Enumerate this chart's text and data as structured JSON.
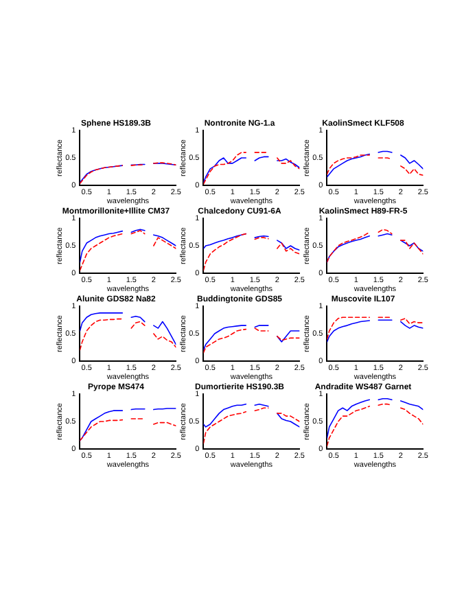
{
  "chart_data": [
    {
      "type": "line",
      "title": "Sphene HS189.3B",
      "xlabel": "wavelengths",
      "ylabel": "reflectance",
      "xlim": [
        0.35,
        2.5
      ],
      "ylim": [
        0,
        1
      ],
      "xticks": [
        0.5,
        1,
        1.5,
        2,
        2.5
      ],
      "yticks": [
        0,
        0.5,
        1
      ],
      "series": [
        {
          "color": "#0000ff",
          "line_style": "solid",
          "x": [
            0.35,
            0.4,
            0.5,
            0.6,
            0.7,
            0.8,
            0.9,
            1.0,
            1.1,
            1.2,
            1.3
          ],
          "values": [
            0.05,
            0.1,
            0.2,
            0.25,
            0.28,
            0.3,
            0.32,
            0.33,
            0.34,
            0.35,
            0.36
          ]
        },
        {
          "color": "#0000fe",
          "line_style": "solid",
          "x": [
            1.5,
            1.6,
            1.7,
            1.8
          ],
          "values": [
            0.37,
            0.37,
            0.38,
            0.38
          ]
        },
        {
          "color": "#0000fd",
          "line_style": "solid",
          "x": [
            2.0,
            2.1,
            2.2,
            2.3,
            2.4,
            2.5
          ],
          "values": [
            0.4,
            0.4,
            0.4,
            0.39,
            0.38,
            0.37
          ]
        },
        {
          "color": "#ff0000",
          "line_style": "dashed",
          "x": [
            0.35,
            0.4,
            0.5,
            0.6,
            0.7,
            0.8,
            0.9,
            1.0,
            1.1,
            1.2,
            1.3
          ],
          "values": [
            0.03,
            0.08,
            0.18,
            0.24,
            0.28,
            0.3,
            0.32,
            0.33,
            0.34,
            0.35,
            0.36
          ]
        },
        {
          "color": "#fe0000",
          "line_style": "dashed",
          "x": [
            1.5,
            1.6,
            1.7,
            1.8
          ],
          "values": [
            0.36,
            0.37,
            0.37,
            0.38
          ]
        },
        {
          "color": "#fd0000",
          "line_style": "dashed",
          "x": [
            2.0,
            2.1,
            2.2,
            2.3,
            2.4,
            2.5
          ],
          "values": [
            0.4,
            0.41,
            0.41,
            0.4,
            0.39,
            0.37
          ]
        }
      ]
    },
    {
      "type": "line",
      "title": "Nontronite NG-1.a",
      "xlabel": "wavelengths",
      "ylabel": "reflectance",
      "xlim": [
        0.35,
        2.5
      ],
      "ylim": [
        0,
        1
      ],
      "xticks": [
        0.5,
        1,
        1.5,
        2,
        2.5
      ],
      "yticks": [
        0,
        0.5,
        1
      ],
      "series": [
        {
          "color": "#0000ff",
          "line_style": "solid",
          "x": [
            0.35,
            0.4,
            0.5,
            0.6,
            0.7,
            0.8,
            0.9,
            1.0,
            1.1,
            1.2,
            1.3
          ],
          "values": [
            0.05,
            0.15,
            0.3,
            0.35,
            0.45,
            0.5,
            0.4,
            0.4,
            0.45,
            0.5,
            0.5
          ]
        },
        {
          "color": "#0000fe",
          "line_style": "solid",
          "x": [
            1.5,
            1.6,
            1.7,
            1.8
          ],
          "values": [
            0.45,
            0.5,
            0.52,
            0.52
          ]
        },
        {
          "color": "#0000fd",
          "line_style": "solid",
          "x": [
            2.0,
            2.1,
            2.2,
            2.3,
            2.4,
            2.5
          ],
          "values": [
            0.45,
            0.45,
            0.48,
            0.42,
            0.38,
            0.32
          ]
        },
        {
          "color": "#ff0000",
          "line_style": "dashed",
          "x": [
            0.35,
            0.4,
            0.5,
            0.6,
            0.7,
            0.8,
            0.9,
            1.0,
            1.1,
            1.2,
            1.3
          ],
          "values": [
            0.02,
            0.1,
            0.25,
            0.35,
            0.38,
            0.38,
            0.4,
            0.45,
            0.55,
            0.6,
            0.6
          ]
        },
        {
          "color": "#fe0000",
          "line_style": "dashed",
          "x": [
            1.5,
            1.6,
            1.7,
            1.8
          ],
          "values": [
            0.6,
            0.6,
            0.6,
            0.6
          ]
        },
        {
          "color": "#fd0000",
          "line_style": "dashed",
          "x": [
            2.0,
            2.1,
            2.2,
            2.3,
            2.4,
            2.5
          ],
          "values": [
            0.5,
            0.4,
            0.4,
            0.45,
            0.35,
            0.3
          ]
        }
      ]
    },
    {
      "type": "line",
      "title": "KaolinSmect KLF508",
      "xlabel": "wavelengths",
      "ylabel": "reflectance",
      "xlim": [
        0.35,
        2.5
      ],
      "ylim": [
        0,
        1
      ],
      "xticks": [
        0.5,
        1,
        1.5,
        2,
        2.5
      ],
      "yticks": [
        0,
        0.5,
        1
      ],
      "series": [
        {
          "color": "#0000ff",
          "line_style": "solid",
          "x": [
            0.35,
            0.4,
            0.5,
            0.6,
            0.7,
            0.8,
            0.9,
            1.0,
            1.1,
            1.2,
            1.3
          ],
          "values": [
            0.15,
            0.2,
            0.3,
            0.35,
            0.4,
            0.45,
            0.48,
            0.5,
            0.52,
            0.55,
            0.57
          ]
        },
        {
          "color": "#0000fe",
          "line_style": "solid",
          "x": [
            1.5,
            1.6,
            1.7,
            1.8
          ],
          "values": [
            0.6,
            0.62,
            0.62,
            0.6
          ]
        },
        {
          "color": "#0000fd",
          "line_style": "solid",
          "x": [
            2.0,
            2.1,
            2.2,
            2.3,
            2.4,
            2.5
          ],
          "values": [
            0.55,
            0.5,
            0.4,
            0.45,
            0.38,
            0.3
          ]
        },
        {
          "color": "#ff0000",
          "line_style": "dashed",
          "x": [
            0.35,
            0.4,
            0.5,
            0.6,
            0.7,
            0.8,
            0.9,
            1.0,
            1.1,
            1.2,
            1.3
          ],
          "values": [
            0.2,
            0.3,
            0.4,
            0.45,
            0.48,
            0.5,
            0.5,
            0.52,
            0.55,
            0.55,
            0.55
          ]
        },
        {
          "color": "#fe0000",
          "line_style": "dashed",
          "x": [
            1.5,
            1.6,
            1.7,
            1.8
          ],
          "values": [
            0.5,
            0.5,
            0.5,
            0.48
          ]
        },
        {
          "color": "#fd0000",
          "line_style": "dashed",
          "x": [
            2.0,
            2.1,
            2.2,
            2.3,
            2.4,
            2.5
          ],
          "values": [
            0.35,
            0.3,
            0.2,
            0.3,
            0.2,
            0.18
          ]
        }
      ]
    },
    {
      "type": "line",
      "title": "Montmorillonite+Illite CM37",
      "xlabel": "wavelengths",
      "ylabel": "reflectance",
      "xlim": [
        0.35,
        2.5
      ],
      "ylim": [
        0,
        1
      ],
      "xticks": [
        0.5,
        1,
        1.5,
        2,
        2.5
      ],
      "yticks": [
        0,
        0.5,
        1
      ],
      "series": [
        {
          "color": "#0000ff",
          "line_style": "solid",
          "x": [
            0.35,
            0.4,
            0.5,
            0.6,
            0.7,
            0.8,
            0.9,
            1.0,
            1.1,
            1.2,
            1.3
          ],
          "values": [
            0.2,
            0.4,
            0.55,
            0.6,
            0.65,
            0.68,
            0.7,
            0.72,
            0.73,
            0.75,
            0.77
          ]
        },
        {
          "color": "#0000fe",
          "line_style": "solid",
          "x": [
            1.5,
            1.6,
            1.7,
            1.8
          ],
          "values": [
            0.75,
            0.78,
            0.8,
            0.78
          ]
        },
        {
          "color": "#0000fd",
          "line_style": "solid",
          "x": [
            2.0,
            2.1,
            2.2,
            2.3,
            2.4,
            2.5
          ],
          "values": [
            0.7,
            0.68,
            0.65,
            0.6,
            0.55,
            0.5
          ]
        },
        {
          "color": "#ff0000",
          "line_style": "dashed",
          "x": [
            0.35,
            0.4,
            0.5,
            0.6,
            0.7,
            0.8,
            0.9,
            1.0,
            1.1,
            1.2,
            1.3
          ],
          "values": [
            0.05,
            0.15,
            0.35,
            0.45,
            0.5,
            0.55,
            0.6,
            0.65,
            0.68,
            0.7,
            0.72
          ]
        },
        {
          "color": "#fe0000",
          "line_style": "dashed",
          "x": [
            1.5,
            1.6,
            1.7,
            1.8
          ],
          "values": [
            0.72,
            0.75,
            0.78,
            0.72
          ]
        },
        {
          "color": "#fd0000",
          "line_style": "dashed",
          "x": [
            2.0,
            2.1,
            2.2,
            2.3,
            2.4,
            2.5
          ],
          "values": [
            0.5,
            0.65,
            0.6,
            0.55,
            0.5,
            0.45
          ]
        }
      ]
    },
    {
      "type": "line",
      "title": "Chalcedony CU91-6A",
      "xlabel": "wavelengths",
      "ylabel": "reflectance",
      "xlim": [
        0.35,
        2.5
      ],
      "ylim": [
        0,
        1
      ],
      "xticks": [
        0.5,
        1,
        1.5,
        2,
        2.5
      ],
      "yticks": [
        0,
        0.5,
        1
      ],
      "series": [
        {
          "color": "#0000ff",
          "line_style": "solid",
          "x": [
            0.35,
            0.4,
            0.5,
            0.6,
            0.7,
            0.8,
            0.9,
            1.0,
            1.1,
            1.2,
            1.3
          ],
          "values": [
            0.45,
            0.5,
            0.52,
            0.55,
            0.58,
            0.6,
            0.63,
            0.65,
            0.68,
            0.7,
            0.72
          ]
        },
        {
          "color": "#0000fe",
          "line_style": "solid",
          "x": [
            1.5,
            1.6,
            1.7,
            1.8
          ],
          "values": [
            0.65,
            0.67,
            0.68,
            0.67
          ]
        },
        {
          "color": "#0000fd",
          "line_style": "solid",
          "x": [
            2.0,
            2.1,
            2.2,
            2.3,
            2.4,
            2.5
          ],
          "values": [
            0.6,
            0.55,
            0.45,
            0.5,
            0.45,
            0.42
          ]
        },
        {
          "color": "#ff0000",
          "line_style": "dashed",
          "x": [
            0.35,
            0.4,
            0.5,
            0.6,
            0.7,
            0.8,
            0.9,
            1.0,
            1.1,
            1.2,
            1.3
          ],
          "values": [
            0.05,
            0.2,
            0.35,
            0.42,
            0.48,
            0.52,
            0.58,
            0.62,
            0.66,
            0.7,
            0.72
          ]
        },
        {
          "color": "#fe0000",
          "line_style": "dashed",
          "x": [
            1.5,
            1.6,
            1.7,
            1.8
          ],
          "values": [
            0.62,
            0.65,
            0.65,
            0.63
          ]
        },
        {
          "color": "#fd0000",
          "line_style": "dashed",
          "x": [
            2.0,
            2.1,
            2.2,
            2.3,
            2.4,
            2.5
          ],
          "values": [
            0.45,
            0.55,
            0.4,
            0.45,
            0.38,
            0.35
          ]
        }
      ]
    },
    {
      "type": "line",
      "title": "KaolinSmect H89-FR-5",
      "xlabel": "wavelengths",
      "ylabel": "reflectance",
      "xlim": [
        0.35,
        2.5
      ],
      "ylim": [
        0,
        1
      ],
      "xticks": [
        0.5,
        1,
        1.5,
        2,
        2.5
      ],
      "yticks": [
        0,
        0.5,
        1
      ],
      "series": [
        {
          "color": "#0000ff",
          "line_style": "solid",
          "x": [
            0.35,
            0.4,
            0.5,
            0.6,
            0.7,
            0.8,
            0.9,
            1.0,
            1.1,
            1.2,
            1.3
          ],
          "values": [
            0.2,
            0.3,
            0.4,
            0.48,
            0.52,
            0.55,
            0.58,
            0.6,
            0.62,
            0.65,
            0.68
          ]
        },
        {
          "color": "#0000fe",
          "line_style": "solid",
          "x": [
            1.5,
            1.6,
            1.7,
            1.8
          ],
          "values": [
            0.68,
            0.7,
            0.72,
            0.7
          ]
        },
        {
          "color": "#0000fd",
          "line_style": "solid",
          "x": [
            2.0,
            2.1,
            2.2,
            2.3,
            2.4,
            2.5
          ],
          "values": [
            0.6,
            0.55,
            0.5,
            0.55,
            0.45,
            0.4
          ]
        },
        {
          "color": "#ff0000",
          "line_style": "dashed",
          "x": [
            0.35,
            0.4,
            0.5,
            0.6,
            0.7,
            0.8,
            0.9,
            1.0,
            1.1,
            1.2,
            1.3
          ],
          "values": [
            0.2,
            0.3,
            0.4,
            0.5,
            0.55,
            0.58,
            0.6,
            0.63,
            0.66,
            0.7,
            0.75
          ]
        },
        {
          "color": "#fe0000",
          "line_style": "dashed",
          "x": [
            1.5,
            1.6,
            1.7,
            1.8
          ],
          "values": [
            0.75,
            0.8,
            0.78,
            0.72
          ]
        },
        {
          "color": "#fd0000",
          "line_style": "dashed",
          "x": [
            2.0,
            2.1,
            2.2,
            2.3,
            2.4,
            2.5
          ],
          "values": [
            0.6,
            0.6,
            0.45,
            0.55,
            0.45,
            0.35
          ]
        }
      ]
    },
    {
      "type": "line",
      "title": "Alunite GDS82 Na82",
      "xlabel": "wavelengths",
      "ylabel": "reflectance",
      "xlim": [
        0.35,
        2.5
      ],
      "ylim": [
        0,
        1
      ],
      "xticks": [
        0.5,
        1,
        1.5,
        2,
        2.5
      ],
      "yticks": [
        0,
        0.5,
        1
      ],
      "series": [
        {
          "color": "#0000ff",
          "line_style": "solid",
          "x": [
            0.35,
            0.4,
            0.5,
            0.6,
            0.7,
            0.8,
            0.9,
            1.0,
            1.1,
            1.2,
            1.3
          ],
          "values": [
            0.55,
            0.7,
            0.8,
            0.85,
            0.87,
            0.88,
            0.88,
            0.88,
            0.88,
            0.88,
            0.88
          ]
        },
        {
          "color": "#0000fe",
          "line_style": "solid",
          "x": [
            1.5,
            1.6,
            1.7,
            1.8
          ],
          "values": [
            0.8,
            0.82,
            0.8,
            0.72
          ]
        },
        {
          "color": "#0000fd",
          "line_style": "solid",
          "x": [
            2.0,
            2.1,
            2.2,
            2.3,
            2.4,
            2.5
          ],
          "values": [
            0.65,
            0.6,
            0.72,
            0.6,
            0.45,
            0.3
          ]
        },
        {
          "color": "#ff0000",
          "line_style": "dashed",
          "x": [
            0.35,
            0.4,
            0.5,
            0.6,
            0.7,
            0.8,
            0.9,
            1.0,
            1.1,
            1.2,
            1.3
          ],
          "values": [
            0.2,
            0.35,
            0.55,
            0.65,
            0.72,
            0.75,
            0.75,
            0.76,
            0.76,
            0.77,
            0.77
          ]
        },
        {
          "color": "#fe0000",
          "line_style": "dashed",
          "x": [
            1.5,
            1.6,
            1.7,
            1.8
          ],
          "values": [
            0.6,
            0.7,
            0.72,
            0.65
          ]
        },
        {
          "color": "#fd0000",
          "line_style": "dashed",
          "x": [
            2.0,
            2.1,
            2.2,
            2.3,
            2.4,
            2.5
          ],
          "values": [
            0.5,
            0.4,
            0.45,
            0.38,
            0.35,
            0.25
          ]
        }
      ]
    },
    {
      "type": "line",
      "title": "Buddingtonite GDS85",
      "xlabel": "wavelengths",
      "ylabel": "reflectance",
      "xlim": [
        0.35,
        2.5
      ],
      "ylim": [
        0,
        1
      ],
      "xticks": [
        0.5,
        1,
        1.5,
        2,
        2.5
      ],
      "yticks": [
        0,
        0.5,
        1
      ],
      "series": [
        {
          "color": "#0000ff",
          "line_style": "solid",
          "x": [
            0.35,
            0.4,
            0.5,
            0.6,
            0.7,
            0.8,
            0.9,
            1.0,
            1.1,
            1.2,
            1.3
          ],
          "values": [
            0.2,
            0.3,
            0.4,
            0.5,
            0.55,
            0.6,
            0.62,
            0.63,
            0.64,
            0.65,
            0.65
          ]
        },
        {
          "color": "#0000fe",
          "line_style": "solid",
          "x": [
            1.5,
            1.6,
            1.7,
            1.8
          ],
          "values": [
            0.62,
            0.65,
            0.65,
            0.65
          ]
        },
        {
          "color": "#0000fd",
          "line_style": "solid",
          "x": [
            2.0,
            2.1,
            2.2,
            2.3,
            2.4,
            2.5
          ],
          "values": [
            0.45,
            0.35,
            0.45,
            0.55,
            0.55,
            0.55
          ]
        },
        {
          "color": "#ff0000",
          "line_style": "dashed",
          "x": [
            0.35,
            0.4,
            0.5,
            0.6,
            0.7,
            0.8,
            0.9,
            1.0,
            1.1,
            1.2,
            1.3
          ],
          "values": [
            0.15,
            0.25,
            0.3,
            0.35,
            0.4,
            0.42,
            0.45,
            0.5,
            0.55,
            0.57,
            0.58
          ]
        },
        {
          "color": "#fe0000",
          "line_style": "dashed",
          "x": [
            1.5,
            1.6,
            1.7,
            1.8
          ],
          "values": [
            0.6,
            0.55,
            0.55,
            0.55
          ]
        },
        {
          "color": "#fd0000",
          "line_style": "dashed",
          "x": [
            2.0,
            2.1,
            2.2,
            2.3,
            2.4,
            2.5
          ],
          "values": [
            0.45,
            0.38,
            0.4,
            0.42,
            0.42,
            0.42
          ]
        }
      ]
    },
    {
      "type": "line",
      "title": "Muscovite IL107",
      "xlabel": "wavelengths",
      "ylabel": "reflectance",
      "xlim": [
        0.35,
        2.5
      ],
      "ylim": [
        0,
        1
      ],
      "xticks": [
        0.5,
        1,
        1.5,
        2,
        2.5
      ],
      "yticks": [
        0,
        0.5,
        1
      ],
      "series": [
        {
          "color": "#0000ff",
          "line_style": "solid",
          "x": [
            0.35,
            0.4,
            0.5,
            0.6,
            0.7,
            0.8,
            0.9,
            1.0,
            1.1,
            1.2,
            1.3
          ],
          "values": [
            0.35,
            0.45,
            0.55,
            0.6,
            0.63,
            0.65,
            0.68,
            0.7,
            0.72,
            0.73,
            0.74
          ]
        },
        {
          "color": "#0000fe",
          "line_style": "solid",
          "x": [
            1.5,
            1.6,
            1.7,
            1.8
          ],
          "values": [
            0.75,
            0.75,
            0.75,
            0.75
          ]
        },
        {
          "color": "#0000fd",
          "line_style": "solid",
          "x": [
            2.0,
            2.1,
            2.2,
            2.3,
            2.4,
            2.5
          ],
          "values": [
            0.72,
            0.65,
            0.6,
            0.65,
            0.62,
            0.6
          ]
        },
        {
          "color": "#ff0000",
          "line_style": "dashed",
          "x": [
            0.35,
            0.4,
            0.5,
            0.6,
            0.7,
            0.8,
            0.9,
            1.0,
            1.1,
            1.2,
            1.3
          ],
          "values": [
            0.4,
            0.55,
            0.7,
            0.78,
            0.8,
            0.8,
            0.8,
            0.8,
            0.8,
            0.8,
            0.8
          ]
        },
        {
          "color": "#fe0000",
          "line_style": "dashed",
          "x": [
            1.5,
            1.6,
            1.7,
            1.8
          ],
          "values": [
            0.8,
            0.8,
            0.8,
            0.8
          ]
        },
        {
          "color": "#fd0000",
          "line_style": "dashed",
          "x": [
            2.0,
            2.1,
            2.2,
            2.3,
            2.4,
            2.5
          ],
          "values": [
            0.75,
            0.78,
            0.68,
            0.72,
            0.7,
            0.7
          ]
        }
      ]
    },
    {
      "type": "line",
      "title": "Pyrope MS474",
      "xlabel": "wavelengths",
      "ylabel": "reflectance",
      "xlim": [
        0.35,
        2.5
      ],
      "ylim": [
        0,
        1
      ],
      "xticks": [
        0.5,
        1,
        1.5,
        2,
        2.5
      ],
      "yticks": [
        0,
        0.5,
        1
      ],
      "series": [
        {
          "color": "#0000ff",
          "line_style": "solid",
          "x": [
            0.35,
            0.4,
            0.5,
            0.6,
            0.7,
            0.8,
            0.9,
            1.0,
            1.1,
            1.2,
            1.3
          ],
          "values": [
            0.15,
            0.2,
            0.35,
            0.5,
            0.55,
            0.6,
            0.65,
            0.68,
            0.7,
            0.7,
            0.7
          ]
        },
        {
          "color": "#0000fe",
          "line_style": "solid",
          "x": [
            1.5,
            1.6,
            1.7,
            1.8
          ],
          "values": [
            0.72,
            0.73,
            0.73,
            0.73
          ]
        },
        {
          "color": "#0000fd",
          "line_style": "solid",
          "x": [
            2.0,
            2.1,
            2.2,
            2.3,
            2.4,
            2.5
          ],
          "values": [
            0.72,
            0.73,
            0.73,
            0.74,
            0.74,
            0.74
          ]
        },
        {
          "color": "#ff0000",
          "line_style": "dashed",
          "x": [
            0.35,
            0.4,
            0.5,
            0.6,
            0.7,
            0.8,
            0.9,
            1.0,
            1.1,
            1.2,
            1.3
          ],
          "values": [
            0.15,
            0.2,
            0.3,
            0.4,
            0.45,
            0.5,
            0.5,
            0.52,
            0.52,
            0.52,
            0.53
          ]
        },
        {
          "color": "#fe0000",
          "line_style": "dashed",
          "x": [
            1.5,
            1.6,
            1.7,
            1.8
          ],
          "values": [
            0.55,
            0.55,
            0.55,
            0.55
          ]
        },
        {
          "color": "#fd0000",
          "line_style": "dashed",
          "x": [
            2.0,
            2.1,
            2.2,
            2.3,
            2.4,
            2.5
          ],
          "values": [
            0.45,
            0.48,
            0.48,
            0.48,
            0.45,
            0.42
          ]
        }
      ]
    },
    {
      "type": "line",
      "title": "Dumortierite HS190.3B",
      "xlabel": "wavelengths",
      "ylabel": "reflectance",
      "xlim": [
        0.35,
        2.5
      ],
      "ylim": [
        0,
        1
      ],
      "xticks": [
        0.5,
        1,
        1.5,
        2,
        2.5
      ],
      "yticks": [
        0,
        0.5,
        1
      ],
      "series": [
        {
          "color": "#0000ff",
          "line_style": "solid",
          "x": [
            0.35,
            0.4,
            0.5,
            0.6,
            0.7,
            0.8,
            0.9,
            1.0,
            1.1,
            1.2,
            1.3
          ],
          "values": [
            0.45,
            0.4,
            0.45,
            0.55,
            0.65,
            0.72,
            0.75,
            0.78,
            0.8,
            0.8,
            0.82
          ]
        },
        {
          "color": "#0000fe",
          "line_style": "solid",
          "x": [
            1.5,
            1.6,
            1.7,
            1.8
          ],
          "values": [
            0.8,
            0.82,
            0.8,
            0.78
          ]
        },
        {
          "color": "#0000fd",
          "line_style": "solid",
          "x": [
            2.0,
            2.1,
            2.2,
            2.3,
            2.4,
            2.5
          ],
          "values": [
            0.65,
            0.55,
            0.52,
            0.5,
            0.45,
            0.4
          ]
        },
        {
          "color": "#ff0000",
          "line_style": "dashed",
          "x": [
            0.35,
            0.4,
            0.5,
            0.6,
            0.7,
            0.8,
            0.9,
            1.0,
            1.1,
            1.2,
            1.3
          ],
          "values": [
            0.1,
            0.3,
            0.4,
            0.45,
            0.5,
            0.55,
            0.6,
            0.62,
            0.64,
            0.65,
            0.68
          ]
        },
        {
          "color": "#fe0000",
          "line_style": "dashed",
          "x": [
            1.5,
            1.6,
            1.7,
            1.8
          ],
          "values": [
            0.7,
            0.72,
            0.75,
            0.75
          ]
        },
        {
          "color": "#fd0000",
          "line_style": "dashed",
          "x": [
            2.0,
            2.1,
            2.2,
            2.3,
            2.4,
            2.5
          ],
          "values": [
            0.65,
            0.65,
            0.6,
            0.6,
            0.55,
            0.5
          ]
        }
      ]
    },
    {
      "type": "line",
      "title": "Andradite WS487 Garnet",
      "xlabel": "wavelengths",
      "ylabel": "reflectance",
      "xlim": [
        0.35,
        2.5
      ],
      "ylim": [
        0,
        1
      ],
      "xticks": [
        0.5,
        1,
        1.5,
        2,
        2.5
      ],
      "yticks": [
        0,
        0.5,
        1
      ],
      "series": [
        {
          "color": "#0000ff",
          "line_style": "solid",
          "x": [
            0.35,
            0.4,
            0.5,
            0.6,
            0.7,
            0.8,
            0.9,
            1.0,
            1.1,
            1.2,
            1.3
          ],
          "values": [
            0.2,
            0.4,
            0.55,
            0.7,
            0.75,
            0.7,
            0.78,
            0.82,
            0.85,
            0.88,
            0.9
          ]
        },
        {
          "color": "#0000fe",
          "line_style": "solid",
          "x": [
            1.5,
            1.6,
            1.7,
            1.8
          ],
          "values": [
            0.9,
            0.92,
            0.92,
            0.9
          ]
        },
        {
          "color": "#0000fd",
          "line_style": "solid",
          "x": [
            2.0,
            2.1,
            2.2,
            2.3,
            2.4,
            2.5
          ],
          "values": [
            0.88,
            0.85,
            0.82,
            0.8,
            0.78,
            0.72
          ]
        },
        {
          "color": "#ff0000",
          "line_style": "dashed",
          "x": [
            0.35,
            0.4,
            0.5,
            0.6,
            0.7,
            0.8,
            0.9,
            1.0,
            1.1,
            1.2,
            1.3
          ],
          "values": [
            0.05,
            0.2,
            0.35,
            0.5,
            0.6,
            0.6,
            0.65,
            0.7,
            0.72,
            0.75,
            0.78
          ]
        },
        {
          "color": "#fe0000",
          "line_style": "dashed",
          "x": [
            1.5,
            1.6,
            1.7,
            1.8
          ],
          "values": [
            0.8,
            0.82,
            0.82,
            0.8
          ]
        },
        {
          "color": "#fd0000",
          "line_style": "dashed",
          "x": [
            2.0,
            2.1,
            2.2,
            2.3,
            2.4,
            2.5
          ],
          "values": [
            0.75,
            0.72,
            0.65,
            0.6,
            0.55,
            0.45
          ]
        }
      ]
    }
  ]
}
